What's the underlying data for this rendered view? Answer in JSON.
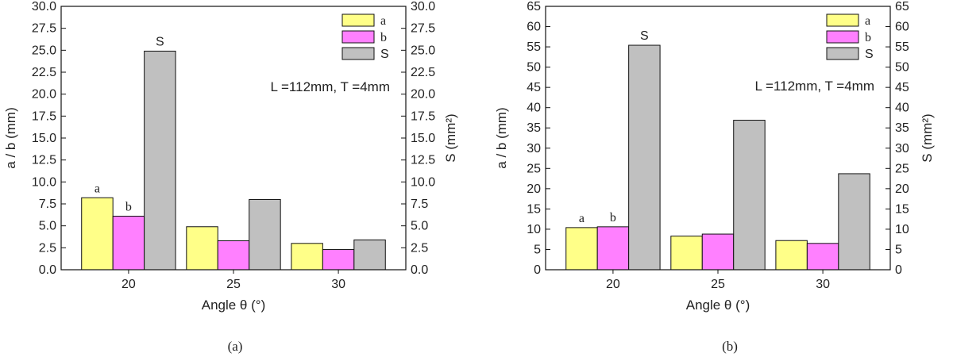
{
  "chart_data": [
    {
      "type": "bar",
      "categories": [
        "20",
        "25",
        "30"
      ],
      "series": [
        {
          "name": "a",
          "values": [
            8.2,
            4.9,
            3.0
          ],
          "color": "#ffff88",
          "axis": "left"
        },
        {
          "name": "b",
          "values": [
            6.1,
            3.3,
            2.3
          ],
          "color": "#ff80ff",
          "axis": "left"
        },
        {
          "name": "S",
          "values": [
            24.9,
            8.0,
            3.4
          ],
          "color": "#c0c0c0",
          "axis": "right"
        }
      ],
      "xlabel": "Angle θ (°)",
      "ylabel": "a / b (mm)",
      "ylabel_right": "S (mm²)",
      "ylim": [
        0,
        30
      ],
      "ylim_right": [
        0,
        30
      ],
      "yticks": [
        "0.0",
        "2.5",
        "5.0",
        "7.5",
        "10.0",
        "12.5",
        "15.0",
        "17.5",
        "20.0",
        "22.5",
        "25.0",
        "27.5",
        "30.0"
      ],
      "yticks_right": [
        "0.0",
        "2.5",
        "5.0",
        "7.5",
        "10.0",
        "12.5",
        "15.0",
        "17.5",
        "20.0",
        "22.5",
        "25.0",
        "27.5",
        "30.0"
      ],
      "annotation": "L =112mm, T =4mm",
      "bar_labels": [
        "a",
        "b",
        "S"
      ],
      "legend_position": "top-right",
      "caption": "(a)"
    },
    {
      "type": "bar",
      "categories": [
        "20",
        "25",
        "30"
      ],
      "series": [
        {
          "name": "a",
          "values": [
            10.4,
            8.3,
            7.2
          ],
          "color": "#ffff88",
          "axis": "left"
        },
        {
          "name": "b",
          "values": [
            10.6,
            8.8,
            6.5
          ],
          "color": "#ff80ff",
          "axis": "left"
        },
        {
          "name": "S",
          "values": [
            55.4,
            36.9,
            23.7
          ],
          "color": "#c0c0c0",
          "axis": "right"
        }
      ],
      "xlabel": "Angle θ (°)",
      "ylabel": "a / b (mm)",
      "ylabel_right": "S (mm²)",
      "ylim": [
        0,
        65
      ],
      "ylim_right": [
        0,
        65
      ],
      "yticks": [
        "0",
        "5",
        "10",
        "15",
        "20",
        "25",
        "30",
        "35",
        "40",
        "45",
        "50",
        "55",
        "60",
        "65"
      ],
      "yticks_right": [
        "0",
        "5",
        "10",
        "15",
        "20",
        "25",
        "30",
        "35",
        "40",
        "45",
        "50",
        "55",
        "60",
        "65"
      ],
      "annotation": "L =112mm, T =4mm",
      "bar_labels": [
        "a",
        "b",
        "S"
      ],
      "legend_position": "top-right",
      "caption": "(b)"
    }
  ]
}
